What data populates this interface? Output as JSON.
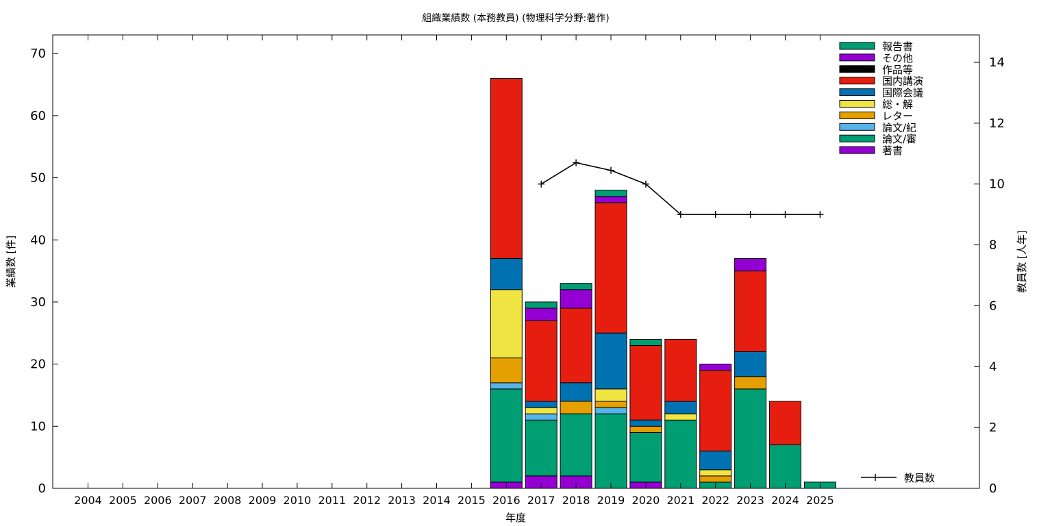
{
  "chart_data": {
    "type": "bar",
    "stacked": true,
    "title": "組織業績数 (本務教員) (物理科学分野:著作)",
    "xlabel": "年度",
    "ylabel": "業績数 [件]",
    "y2label": "教員数 [人年]",
    "ylim": [
      0,
      73
    ],
    "y2lim": [
      0,
      14.9
    ],
    "yticks": [
      "0",
      "10",
      "20",
      "30",
      "40",
      "50",
      "60",
      "70"
    ],
    "y2ticks": [
      "0",
      "2",
      "4",
      "6",
      "8",
      "10",
      "12",
      "14"
    ],
    "categories": [
      "2004",
      "2005",
      "2006",
      "2007",
      "2008",
      "2009",
      "2010",
      "2011",
      "2012",
      "2013",
      "2014",
      "2015",
      "2016",
      "2017",
      "2018",
      "2019",
      "2020",
      "2021",
      "2022",
      "2023",
      "2024",
      "2025"
    ],
    "series": [
      {
        "name": "著書",
        "color": "#9400d3",
        "values": [
          0,
          0,
          0,
          0,
          0,
          0,
          0,
          0,
          0,
          0,
          0,
          0,
          1,
          2,
          2,
          0,
          1,
          0,
          0,
          0,
          0,
          0
        ]
      },
      {
        "name": "論文/審",
        "color": "#009e73",
        "values": [
          0,
          0,
          0,
          0,
          0,
          0,
          0,
          0,
          0,
          0,
          0,
          0,
          15,
          9,
          10,
          12,
          8,
          11,
          1,
          16,
          7,
          1
        ]
      },
      {
        "name": "論文/紀",
        "color": "#56b4e9",
        "values": [
          0,
          0,
          0,
          0,
          0,
          0,
          0,
          0,
          0,
          0,
          0,
          0,
          1,
          1,
          0,
          1,
          0,
          0,
          0,
          0,
          0,
          0
        ]
      },
      {
        "name": "レター",
        "color": "#e69f00",
        "values": [
          0,
          0,
          0,
          0,
          0,
          0,
          0,
          0,
          0,
          0,
          0,
          0,
          4,
          0,
          2,
          1,
          1,
          0,
          1,
          2,
          0,
          0
        ]
      },
      {
        "name": "総・解",
        "color": "#f0e442",
        "values": [
          0,
          0,
          0,
          0,
          0,
          0,
          0,
          0,
          0,
          0,
          0,
          0,
          11,
          1,
          0,
          2,
          0,
          1,
          1,
          0,
          0,
          0
        ]
      },
      {
        "name": "国際会議",
        "color": "#0072b2",
        "values": [
          0,
          0,
          0,
          0,
          0,
          0,
          0,
          0,
          0,
          0,
          0,
          0,
          5,
          1,
          3,
          9,
          1,
          2,
          3,
          4,
          0,
          0
        ]
      },
      {
        "name": "国内講演",
        "color": "#e51e10",
        "values": [
          0,
          0,
          0,
          0,
          0,
          0,
          0,
          0,
          0,
          0,
          0,
          0,
          29,
          13,
          12,
          21,
          12,
          10,
          13,
          13,
          7,
          0
        ]
      },
      {
        "name": "作品等",
        "color": "#000000",
        "values": [
          0,
          0,
          0,
          0,
          0,
          0,
          0,
          0,
          0,
          0,
          0,
          0,
          0,
          0,
          0,
          0,
          0,
          0,
          0,
          0,
          0,
          0
        ]
      },
      {
        "name": "その他",
        "color": "#9400d3",
        "values": [
          0,
          0,
          0,
          0,
          0,
          0,
          0,
          0,
          0,
          0,
          0,
          0,
          0,
          2,
          3,
          1,
          0,
          0,
          1,
          2,
          0,
          0
        ]
      },
      {
        "name": "報告書",
        "color": "#009e73",
        "values": [
          0,
          0,
          0,
          0,
          0,
          0,
          0,
          0,
          0,
          0,
          0,
          0,
          0,
          1,
          1,
          1,
          1,
          0,
          0,
          0,
          0,
          0
        ]
      }
    ],
    "line": {
      "name": "教員数",
      "color": "#000000",
      "axis": "y2",
      "x": [
        "2017",
        "2018",
        "2019",
        "2020",
        "2021",
        "2022",
        "2023",
        "2024",
        "2025"
      ],
      "values": [
        10,
        10.7,
        10.45,
        10,
        9,
        9,
        9,
        9,
        9
      ]
    },
    "legend": "top-right",
    "legend_order": [
      "報告書",
      "その他",
      "作品等",
      "国内講演",
      "国際会議",
      "総・解",
      "レター",
      "論文/紀",
      "論文/審",
      "著書"
    ],
    "grid": false
  }
}
